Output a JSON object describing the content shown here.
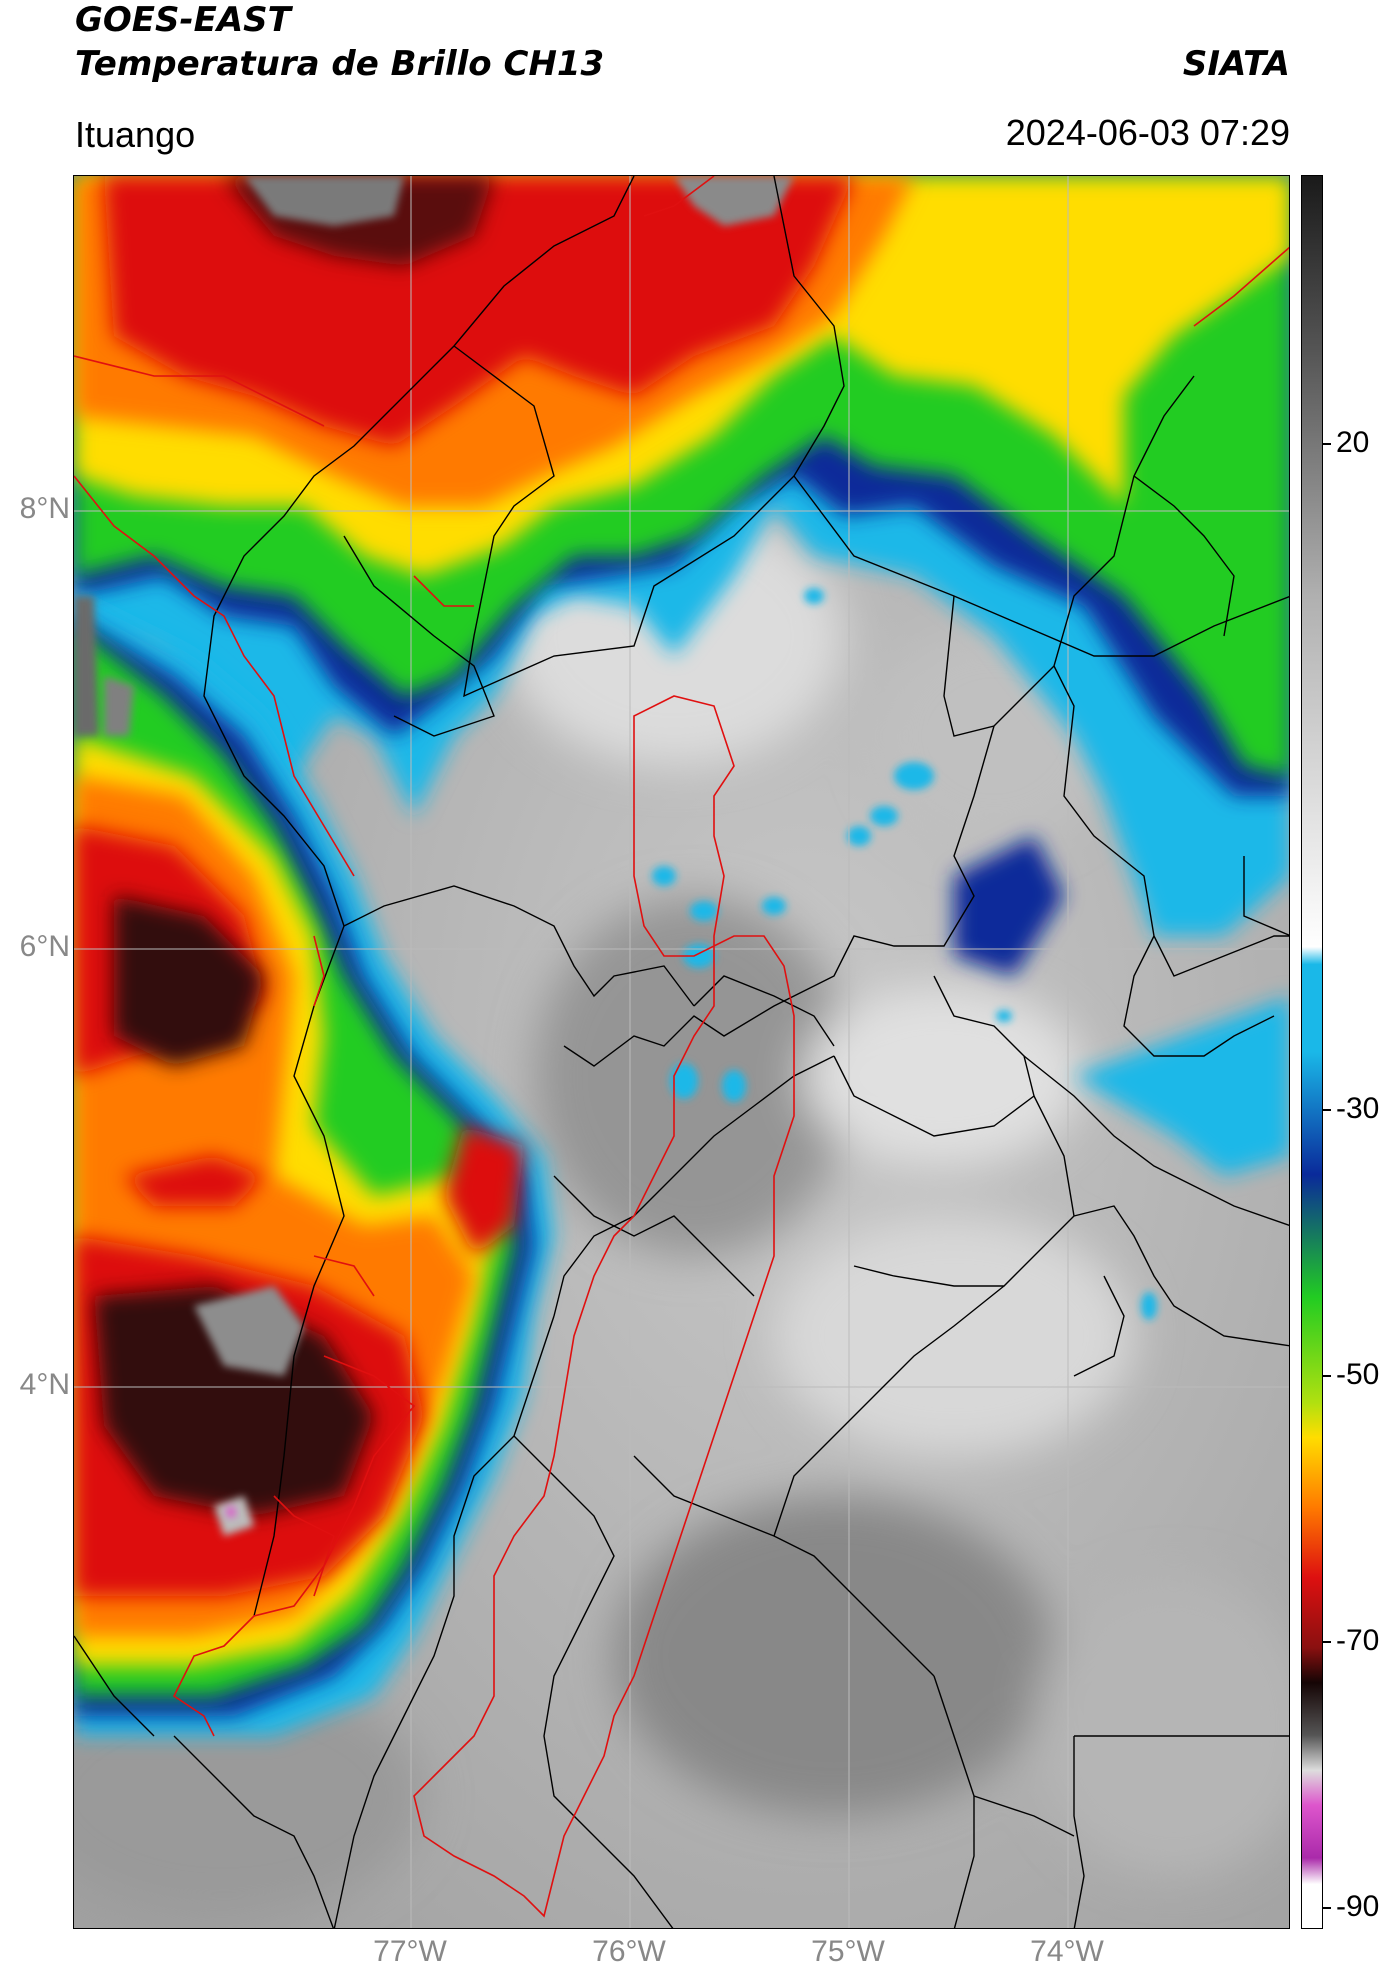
{
  "header": {
    "line1": "GOES-EAST",
    "line2": "Temperatura de Brillo CH13",
    "brand": "SIATA",
    "region": "Ituango",
    "timestamp": "2024-06-03 07:29"
  },
  "map": {
    "lat_labels": [
      "8°N",
      "6°N",
      "4°N"
    ],
    "lon_labels": [
      "77°W",
      "76°W",
      "75°W",
      "74°W"
    ],
    "grid": true
  },
  "colorbar": {
    "tick_labels": [
      "20",
      "-30",
      "-50",
      "-70",
      "-90"
    ],
    "colors": {
      "warm_gray": "#b0b0b0",
      "cyan": "#1ab8e8",
      "blue": "#0a2a9a",
      "green": "#22cc22",
      "yellow": "#ffdd00",
      "orange": "#ff7a00",
      "red": "#dd1010",
      "dark": "#150505",
      "magenta": "#dd55cc"
    }
  }
}
